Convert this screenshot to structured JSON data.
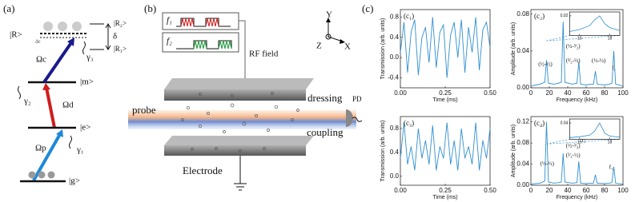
{
  "panel_a": {
    "label": "(a)",
    "R": "|R>",
    "R2": "|R₂>",
    "R1": "|R₁>",
    "delta": "δ",
    "Delta_c": "Δc",
    "Omega_c": "Ωc",
    "gamma3": "γ₃",
    "m": "|m>",
    "gamma2": "γ₂",
    "Omega_d": "Ωd",
    "e": "|e>",
    "Omega_p": "Ωp",
    "gamma1": "γ₁",
    "g": "|g>"
  },
  "panel_b": {
    "label": "(b)",
    "f1": "f₁",
    "f2": "f₂",
    "rf": "RF field",
    "axis_y": "Y",
    "axis_z": "Z",
    "axis_x": "X",
    "probe": "probe",
    "dressing": "dressing",
    "pd": "PD",
    "coupling": "coupling",
    "electrode": "Electrode"
  },
  "panel_c": {
    "label": "(c)",
    "charts": [
      {
        "type": "line",
        "label": "(c₁)",
        "xlabel": "Time (ms)",
        "ylabel": "Transmission (arb. units)",
        "color": "#2f8fcf",
        "x": [
          0,
          0.02,
          0.04,
          0.06,
          0.08,
          0.1,
          0.12,
          0.14,
          0.16,
          0.18,
          0.2,
          0.22,
          0.24,
          0.26,
          0.28,
          0.3,
          0.32,
          0.34,
          0.36,
          0.38,
          0.4,
          0.42,
          0.44,
          0.46,
          0.48,
          0.5
        ],
        "values": [
          0.1,
          0.7,
          -0.3,
          0.5,
          0.75,
          -0.35,
          0.4,
          0.6,
          -0.1,
          0.8,
          -0.2,
          0.5,
          0.65,
          -0.4,
          0.45,
          0.7,
          0.0,
          0.75,
          -0.3,
          0.6,
          0.1,
          0.8,
          -0.25,
          0.55,
          0.7,
          0.2
        ],
        "xlim": [
          0,
          0.5
        ],
        "xticks": [
          {
            "value": 0,
            "label": "0.00"
          },
          0.25,
          {
            "value": 0.5,
            "label": "0.50"
          }
        ],
        "ylim": [
          -0.6,
          0.95
        ],
        "yticks": [
          -0.4,
          {
            "value": 0,
            "label": "0.0"
          },
          0.4,
          0.8
        ],
        "annotations": []
      },
      {
        "type": "line",
        "label": "(c₂)",
        "xlabel": "Frequency (kHz)",
        "ylabel": "Amplitude (arb. units)",
        "color": "#2f8fcf",
        "x": [
          0,
          5,
          10,
          15,
          17,
          19,
          25,
          30,
          33,
          35,
          37,
          45,
          50,
          52,
          54,
          60,
          65,
          68,
          70,
          72,
          80,
          85,
          88,
          90,
          92,
          100
        ],
        "values": [
          0.002,
          0.003,
          0.004,
          0.006,
          0.03,
          0.005,
          0.004,
          0.005,
          0.006,
          0.072,
          0.006,
          0.004,
          0.005,
          0.028,
          0.004,
          0.003,
          0.004,
          0.004,
          0.018,
          0.004,
          0.003,
          0.004,
          0.005,
          0.04,
          0.004,
          0.002
        ],
        "xlim": [
          0,
          100
        ],
        "xticks": [
          0,
          20,
          40,
          60,
          80,
          100
        ],
        "ylim": [
          0,
          0.085
        ],
        "yticks": [
          {
            "value": 0,
            "label": "0.00"
          },
          0.04,
          0.08
        ],
        "annotations": [
          "(½-½)",
          "(³⁄₂-½)",
          "(½-³⁄₂)",
          "(½-½)",
          "f₁"
        ],
        "inset": {
          "x": [
            14,
            15,
            16,
            16.5,
            17,
            17.5,
            18,
            19
          ],
          "values": [
            0.004,
            0.006,
            0.01,
            0.016,
            0.02,
            0.012,
            0.008,
            0.005
          ],
          "xlim": [
            14,
            19
          ],
          "xticks": [
            15,
            18
          ],
          "ylim": [
            0,
            0.024
          ],
          "yticks": [
            0.02
          ]
        }
      },
      {
        "type": "line",
        "label": "(c₃)",
        "xlabel": "Time (ms)",
        "ylabel": "Transmission (arb. units)",
        "color": "#2f8fcf",
        "x": [
          0,
          0.02,
          0.04,
          0.06,
          0.08,
          0.1,
          0.12,
          0.14,
          0.16,
          0.18,
          0.2,
          0.22,
          0.24,
          0.26,
          0.28,
          0.3,
          0.32,
          0.34,
          0.36,
          0.38,
          0.4,
          0.42,
          0.44,
          0.46,
          0.48,
          0.5
        ],
        "values": [
          0.3,
          0.9,
          0.2,
          0.5,
          0.1,
          0.8,
          0.3,
          0.6,
          0.2,
          0.85,
          0.1,
          0.5,
          0.3,
          0.9,
          0.2,
          0.6,
          0.1,
          0.8,
          0.3,
          0.5,
          0.2,
          0.9,
          0.1,
          0.6,
          0.3,
          0.8
        ],
        "xlim": [
          0,
          0.5
        ],
        "xticks": [
          {
            "value": 0,
            "label": "0.00"
          },
          0.25,
          {
            "value": 0.5,
            "label": "0.50"
          }
        ],
        "ylim": [
          -0.15,
          1.0
        ],
        "yticks": [
          {
            "value": 0,
            "label": "0.0"
          },
          0.4,
          0.8
        ],
        "annotations": []
      },
      {
        "type": "line",
        "label": "(c₄)",
        "xlabel": "Frequency (kHz)",
        "ylabel": "Amplitude (arb. units)",
        "color": "#2f8fcf",
        "x": [
          0,
          5,
          10,
          15,
          17,
          19,
          25,
          30,
          33,
          35,
          37,
          45,
          50,
          52,
          54,
          60,
          65,
          68,
          70,
          72,
          80,
          85,
          88,
          90,
          92,
          100
        ],
        "values": [
          0.002,
          0.003,
          0.004,
          0.008,
          0.12,
          0.006,
          0.004,
          0.005,
          0.006,
          0.06,
          0.006,
          0.004,
          0.005,
          0.045,
          0.004,
          0.003,
          0.004,
          0.004,
          0.02,
          0.004,
          0.003,
          0.004,
          0.005,
          0.035,
          0.004,
          0.002
        ],
        "xlim": [
          0,
          100
        ],
        "xticks": [
          0,
          20,
          40,
          60,
          80,
          100
        ],
        "ylim": [
          0,
          0.13
        ],
        "yticks": [
          {
            "value": 0,
            "label": "0.00"
          },
          0.04,
          0.08,
          0.12
        ],
        "annotations": [
          "(½-½)",
          "f₂",
          "(³⁄₂-½)",
          "(½-³⁄₂)",
          "f₁"
        ],
        "inset": {
          "x": [
            14,
            15,
            16,
            16.5,
            17,
            17.5,
            18,
            19
          ],
          "values": [
            0.004,
            0.006,
            0.01,
            0.02,
            0.04,
            0.015,
            0.008,
            0.005
          ],
          "xlim": [
            14,
            19
          ],
          "xticks": [
            15,
            18
          ],
          "ylim": [
            0,
            0.05
          ],
          "yticks": [
            0.04
          ]
        }
      }
    ]
  }
}
